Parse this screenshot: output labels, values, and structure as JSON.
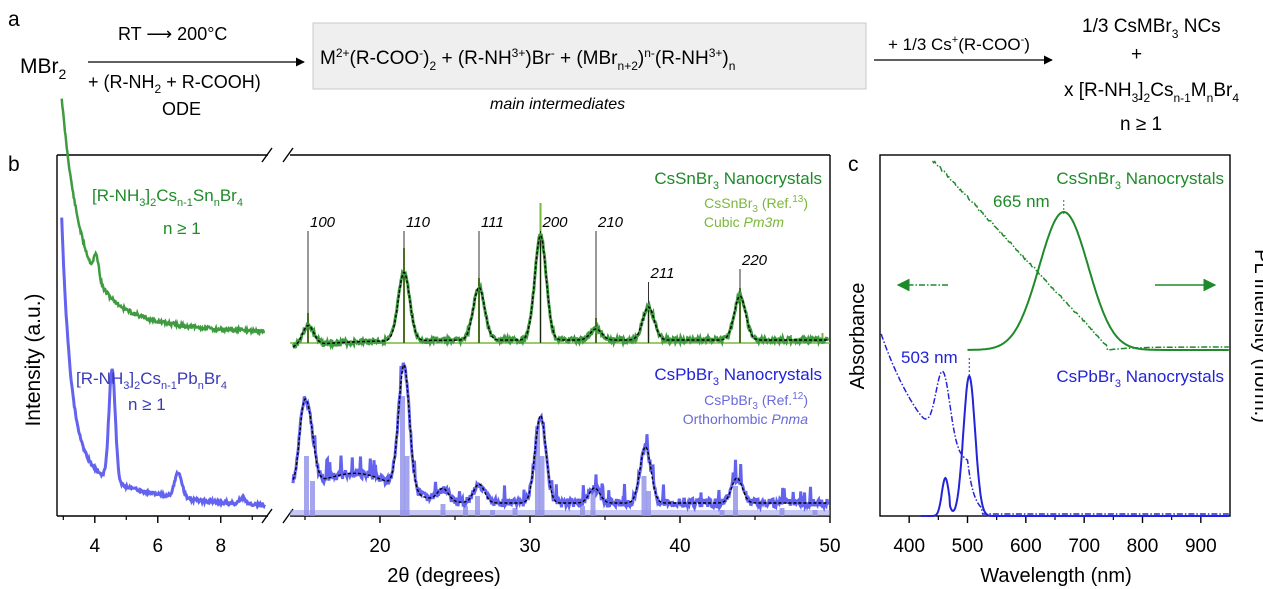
{
  "panel_a": {
    "label": "a",
    "reactant": "MBr2",
    "arrow1_top": "RT ⟶ 200°C",
    "arrow1_bottom": "+ (R-NH2 + R-COOH)",
    "solvent": "ODE",
    "intermediates": "M2+(R-COO-)2 + (R-NH3+)Br- + (MBrn+2)n-(R-NH3+)n",
    "intermediates_caption": "main intermediates",
    "arrow2_top": "+ 1/3 Cs+(R-COO-)",
    "product1": "1/3 CsMBr3 NCs",
    "plus": "+",
    "product2": "x [R-NH3]2Csn-1MnBr4",
    "product3": "n ≥ 1"
  },
  "colors": {
    "green_data": "#3f9b3f",
    "green_text": "#1f8a2a",
    "green_ref": "#7ab83a",
    "blue_data": "#6363f0",
    "blue_text": "#2323d8",
    "blue_ref": "#8f8fe8",
    "fit": "#000000"
  },
  "chart_data": [
    {
      "type": "line",
      "panel": "b",
      "label": "b",
      "ylabel": "Intensity (a.u.)",
      "xlabel": "2θ (degrees)",
      "x_left_ticks": [
        4,
        6,
        8
      ],
      "x_right_ticks": [
        20,
        30,
        40,
        50
      ],
      "xlim_left": [
        2.8,
        9.5
      ],
      "xlim_right": [
        14,
        50
      ],
      "axis_break": true,
      "annotations": {
        "sn_layered": "[R-NH3]2Csn-1SnnBr4",
        "sn_n": "n ≥ 1",
        "pb_layered": "[R-NH3]2Csn-1PbnBr4",
        "pb_n": "n ≥ 1",
        "sn_title": "CsSnBr3 Nanocrystals",
        "sn_ref": "CsSnBr3 (Ref.13)",
        "sn_phase": "Cubic Pm3m",
        "pb_title": "CsPbBr3 Nanocrystals",
        "pb_ref": "CsPbBr3 (Ref.12)",
        "pb_phase": "Orthorhombic Pnma"
      },
      "hkl_peaks": [
        {
          "hkl": "100",
          "x": 15.2
        },
        {
          "hkl": "110",
          "x": 21.6
        },
        {
          "hkl": "111",
          "x": 26.6
        },
        {
          "hkl": "200",
          "x": 30.7
        },
        {
          "hkl": "210",
          "x": 34.4
        },
        {
          "hkl": "211",
          "x": 37.9
        },
        {
          "hkl": "220",
          "x": 44.0
        }
      ],
      "series": [
        {
          "name": "CsSnBr3 Nanocrystals",
          "peaks": [
            15.2,
            21.6,
            26.6,
            30.7,
            34.4,
            37.9,
            44.0
          ],
          "heights": [
            0.18,
            0.62,
            0.48,
            0.95,
            0.1,
            0.3,
            0.4
          ]
        },
        {
          "name": "CsPbBr3 Nanocrystals",
          "peaks": [
            15.2,
            21.6,
            24.2,
            26.6,
            30.7,
            34.3,
            37.7,
            43.8
          ],
          "heights": [
            0.55,
            1.0,
            0.1,
            0.15,
            0.7,
            0.12,
            0.45,
            0.2
          ]
        }
      ]
    },
    {
      "type": "line",
      "panel": "c",
      "label": "c",
      "xlabel": "Wavelength (nm)",
      "ylabel_left": "Absorbance",
      "ylabel_right": "PL Intensity (norm.)",
      "xlim": [
        350,
        950
      ],
      "x_ticks": [
        400,
        500,
        600,
        700,
        800,
        900
      ],
      "series": [
        {
          "name": "CsSnBr3 Nanocrystals",
          "pl_peak_nm": 665,
          "pl_peak_label": "665 nm"
        },
        {
          "name": "CsPbBr3 Nanocrystals",
          "pl_peak_nm": 503,
          "pl_peak_label": "503 nm"
        }
      ]
    }
  ]
}
